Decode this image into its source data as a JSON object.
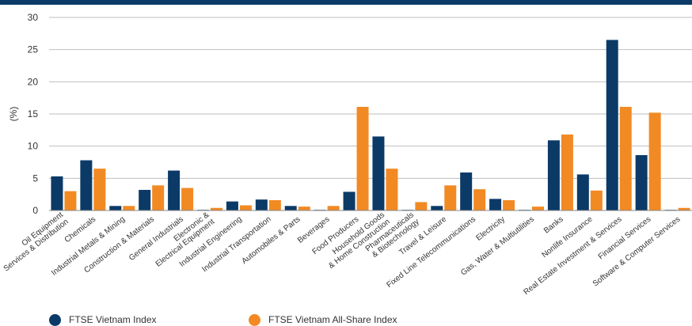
{
  "colors": {
    "header": "#0b3a67",
    "series1": "#0b3a67",
    "series2": "#f28a24"
  },
  "chart_data": {
    "type": "bar",
    "ylabel": "(%)",
    "ylim": [
      0,
      30
    ],
    "yticks": [
      "0",
      "5",
      "10",
      "15",
      "20",
      "25",
      "30"
    ],
    "grid": true,
    "legend_position": "bottom-left",
    "categories": [
      [
        "Oil Equipment",
        "Services & Distribution"
      ],
      [
        "Chemicals"
      ],
      [
        "Industrial Metals & Mining"
      ],
      [
        "Construction & Materials"
      ],
      [
        "General Industrials"
      ],
      [
        "Electronic &",
        "Electrical Equipment"
      ],
      [
        "Industrial Engineering"
      ],
      [
        "Industrial Transportation"
      ],
      [
        "Automobiles & Parts"
      ],
      [
        "Beverages"
      ],
      [
        "Food Producers"
      ],
      [
        "Household Goods",
        "& Home Construction"
      ],
      [
        "Pharmaceuticals",
        "& Biotechnology"
      ],
      [
        "Travel & Leisure"
      ],
      [
        "Fixed Line Telecommunications"
      ],
      [
        "Electricity"
      ],
      [
        "Gas, Water & Multiutilities"
      ],
      [
        "Banks"
      ],
      [
        "Nonlife Insurance"
      ],
      [
        "Real Estate Investment & Services"
      ],
      [
        "Financial Services"
      ],
      [
        "Software & Computer Services"
      ]
    ],
    "series": [
      {
        "name": "FTSE Vietnam Index",
        "values": [
          5.3,
          7.8,
          0.7,
          3.2,
          6.2,
          0.1,
          1.4,
          1.7,
          0.7,
          0.1,
          2.9,
          11.5,
          0.1,
          0.7,
          5.9,
          1.8,
          0.1,
          10.9,
          5.6,
          26.5,
          8.6,
          0.1
        ]
      },
      {
        "name": "FTSE Vietnam All-Share Index",
        "values": [
          3.0,
          6.5,
          0.7,
          3.9,
          3.5,
          0.4,
          0.8,
          1.6,
          0.6,
          0.7,
          16.1,
          6.5,
          1.3,
          3.9,
          3.3,
          1.6,
          0.6,
          11.8,
          3.1,
          16.1,
          15.2,
          0.4
        ]
      }
    ]
  }
}
